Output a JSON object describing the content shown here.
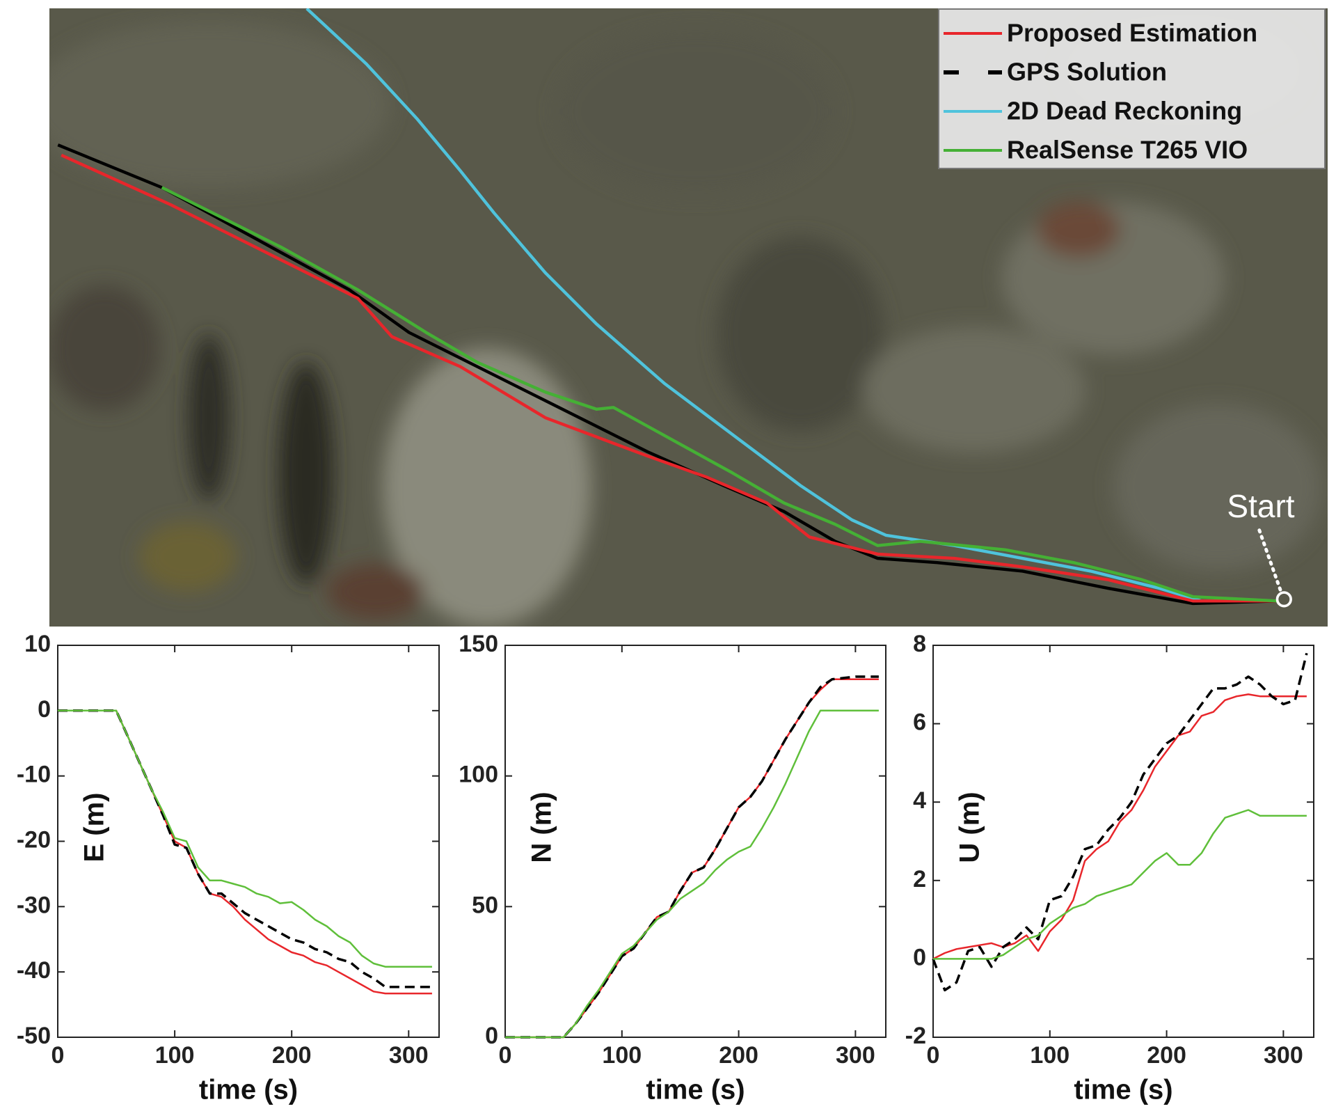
{
  "chart_data": [
    {
      "type": "map",
      "series": [
        {
          "name": "Proposed Estimation",
          "color": "#e8262b"
        },
        {
          "name": "GPS Solution",
          "color": "#000000",
          "dash": true
        },
        {
          "name": "2D Dead Reckoning",
          "color": "#4fc3dc"
        },
        {
          "name": "RealSense T265 VIO",
          "color": "#45b035"
        }
      ],
      "annotation": "Start"
    },
    {
      "type": "line",
      "xlabel": "time (s)",
      "ylabel": "E (m)",
      "x": [
        0,
        10,
        20,
        30,
        40,
        50,
        60,
        70,
        80,
        90,
        100,
        110,
        120,
        130,
        140,
        150,
        160,
        170,
        180,
        190,
        200,
        210,
        220,
        230,
        240,
        250,
        260,
        270,
        280,
        290,
        300,
        310,
        320
      ],
      "xlim": [
        0,
        326
      ],
      "ylim": [
        -50,
        10
      ],
      "xticks": [
        0,
        100,
        200,
        300
      ],
      "yticks": [
        10,
        0,
        -10,
        -20,
        -30,
        -40,
        -50
      ],
      "series": [
        {
          "color": "#e8262b",
          "values": [
            0,
            0,
            0,
            0,
            0,
            0,
            -4,
            -8,
            -12,
            -16,
            -20,
            -21,
            -25,
            -28,
            -28.5,
            -30,
            -32,
            -33.5,
            -35,
            -36,
            -37,
            -37.5,
            -38.5,
            -39,
            -40,
            -41,
            -42,
            -43,
            -43.3,
            -43.3,
            -43.3,
            -43.3,
            -43.3
          ]
        },
        {
          "color": "#000000",
          "dash": true,
          "values": [
            0,
            0,
            0,
            0,
            0,
            0,
            -4,
            -8,
            -12,
            -16,
            -20.5,
            -21,
            -25,
            -28,
            -28,
            -29.5,
            -31,
            -32,
            -33,
            -34,
            -35,
            -35.5,
            -36.5,
            -37,
            -38,
            -38.5,
            -40,
            -41,
            -42.3,
            -42.3,
            -42.3,
            -42.3,
            -42.3
          ]
        },
        {
          "color": "#5fbf3a",
          "values": [
            0,
            0,
            0,
            0,
            0,
            0,
            -4,
            -8,
            -12,
            -15.5,
            -19.5,
            -20,
            -24,
            -26,
            -26,
            -26.5,
            -27,
            -28,
            -28.5,
            -29.5,
            -29.3,
            -30.5,
            -32,
            -33,
            -34.5,
            -35.5,
            -37.5,
            -38.7,
            -39.2,
            -39.2,
            -39.2,
            -39.2,
            -39.2
          ]
        }
      ]
    },
    {
      "type": "line",
      "xlabel": "time (s)",
      "ylabel": "N (m)",
      "x": [
        0,
        10,
        20,
        30,
        40,
        50,
        60,
        70,
        80,
        90,
        100,
        110,
        120,
        130,
        140,
        150,
        160,
        170,
        180,
        190,
        200,
        210,
        220,
        230,
        240,
        250,
        260,
        270,
        280,
        290,
        300,
        310,
        320
      ],
      "xlim": [
        0,
        326
      ],
      "ylim": [
        0,
        150
      ],
      "xticks": [
        0,
        100,
        200,
        300
      ],
      "yticks": [
        0,
        50,
        100,
        150
      ],
      "series": [
        {
          "color": "#e8262b",
          "values": [
            0,
            0,
            0,
            0,
            0,
            0,
            5,
            11,
            17,
            24,
            31,
            34,
            40,
            46,
            48,
            56,
            63,
            65,
            72,
            80,
            88,
            92,
            98,
            106,
            114,
            121,
            128,
            133,
            137,
            137,
            137,
            137,
            137
          ]
        },
        {
          "color": "#000000",
          "dash": true,
          "values": [
            0,
            0,
            0,
            0,
            0,
            0,
            5,
            11,
            17,
            24,
            31,
            34,
            40,
            46,
            48,
            56,
            63,
            65,
            72,
            80,
            88,
            92,
            98,
            106,
            114,
            121,
            128,
            134,
            137,
            137.5,
            138,
            138,
            138
          ]
        },
        {
          "color": "#5fbf3a",
          "values": [
            0,
            0,
            0,
            0,
            0,
            0,
            5,
            12,
            18,
            25,
            32,
            35,
            40,
            45,
            48,
            53,
            56,
            59,
            64,
            68,
            71,
            73,
            80,
            88,
            97,
            107,
            117,
            125,
            125,
            125,
            125,
            125,
            125
          ]
        }
      ]
    },
    {
      "type": "line",
      "xlabel": "time (s)",
      "ylabel": "U (m)",
      "x": [
        0,
        10,
        20,
        30,
        40,
        50,
        60,
        70,
        80,
        90,
        100,
        110,
        120,
        130,
        140,
        150,
        160,
        170,
        180,
        190,
        200,
        210,
        220,
        230,
        240,
        250,
        260,
        270,
        280,
        290,
        300,
        310,
        320
      ],
      "xlim": [
        0,
        326
      ],
      "ylim": [
        -2,
        8
      ],
      "xticks": [
        0,
        100,
        200,
        300
      ],
      "yticks": [
        -2,
        0,
        2,
        4,
        6,
        8
      ],
      "series": [
        {
          "color": "#e8262b",
          "values": [
            0,
            0.15,
            0.25,
            0.3,
            0.35,
            0.4,
            0.3,
            0.4,
            0.6,
            0.2,
            0.7,
            1,
            1.5,
            2.5,
            2.8,
            3,
            3.5,
            3.8,
            4.3,
            4.9,
            5.3,
            5.7,
            5.8,
            6.2,
            6.3,
            6.6,
            6.7,
            6.75,
            6.7,
            6.7,
            6.7,
            6.7,
            6.7
          ]
        },
        {
          "color": "#000000",
          "dash": true,
          "values": [
            0,
            -0.8,
            -0.6,
            0.2,
            0.3,
            -0.2,
            0.3,
            0.5,
            0.8,
            0.5,
            1.5,
            1.6,
            2.1,
            2.8,
            2.9,
            3.3,
            3.6,
            4,
            4.7,
            5.1,
            5.5,
            5.7,
            6.1,
            6.5,
            6.9,
            6.9,
            7,
            7.2,
            7,
            6.7,
            6.5,
            6.6,
            7.8
          ]
        },
        {
          "color": "#5fbf3a",
          "values": [
            0,
            0,
            0,
            0,
            0,
            0,
            0.1,
            0.3,
            0.5,
            0.6,
            0.9,
            1.1,
            1.3,
            1.4,
            1.6,
            1.7,
            1.8,
            1.9,
            2.2,
            2.5,
            2.7,
            2.4,
            2.4,
            2.7,
            3.2,
            3.6,
            3.7,
            3.8,
            3.65,
            3.65,
            3.65,
            3.65,
            3.65
          ]
        }
      ]
    }
  ]
}
